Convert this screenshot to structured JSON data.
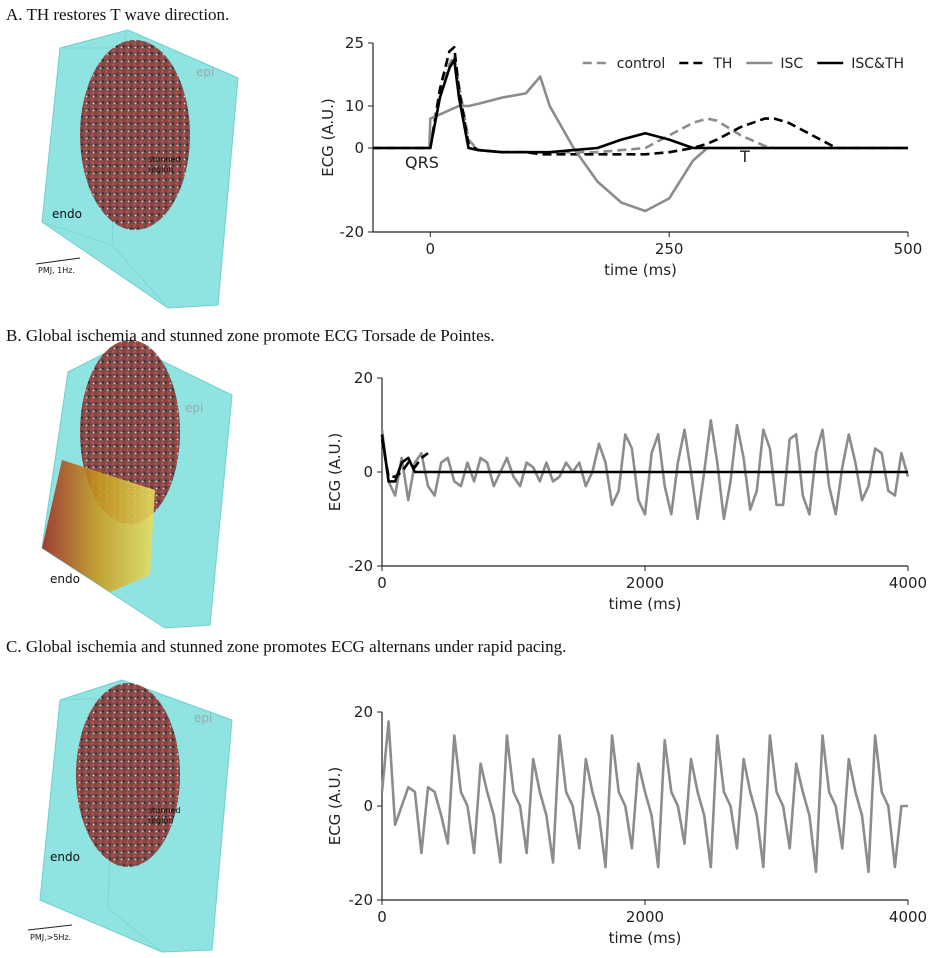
{
  "chart_data": [
    {
      "type": "line",
      "title": "A. TH restores T wave direction.",
      "illustration_labels": [
        "epi",
        "stunned",
        "region",
        "endo",
        "PMJ, 1Hz."
      ],
      "xlabel": "time (ms)",
      "ylabel": "ECG (A.U.)",
      "annotations": [
        "QRS",
        "T"
      ],
      "xlim": [
        -60,
        500
      ],
      "ylim": [
        -20,
        25
      ],
      "xticks": [
        0,
        250,
        500
      ],
      "yticks": [
        -20,
        0,
        10,
        25
      ],
      "legend": "upper right",
      "x": [
        -60,
        -1,
        0,
        10,
        20,
        25,
        30,
        40,
        50,
        75,
        100,
        115,
        125,
        150,
        175,
        200,
        225,
        250,
        275,
        290,
        300,
        325,
        350,
        360,
        375,
        400,
        425,
        450,
        500
      ],
      "series": [
        {
          "name": "control",
          "color": "#8c8c8c",
          "dash": true,
          "values": [
            0,
            0,
            0,
            12,
            20,
            22,
            15,
            2,
            -0.5,
            -1,
            -1,
            -1,
            -1,
            -1,
            -1,
            -0.5,
            0,
            3,
            6,
            7,
            6.5,
            3,
            0.5,
            0,
            0,
            0,
            0,
            0,
            0
          ]
        },
        {
          "name": "TH",
          "color": "#000000",
          "dash": true,
          "values": [
            0,
            0,
            0,
            14,
            23,
            24,
            14,
            1,
            -0.5,
            -1,
            -1,
            -1.5,
            -1.5,
            -1.5,
            -1.5,
            -1.5,
            -1.5,
            -1,
            0,
            1,
            2,
            5,
            7,
            7,
            6,
            3,
            0,
            0,
            0
          ]
        },
        {
          "name": "ISC",
          "color": "#8c8c8c",
          "dash": false,
          "values": [
            0,
            0,
            7,
            8,
            9,
            9.5,
            10,
            10,
            10.5,
            12,
            13,
            17,
            10,
            0,
            -8,
            -13,
            -15,
            -12,
            -3,
            0,
            0,
            0,
            0,
            0,
            0,
            0,
            0,
            0,
            0
          ]
        },
        {
          "name": "ISC&TH",
          "color": "#000000",
          "dash": false,
          "values": [
            0,
            0,
            0,
            12,
            19,
            21,
            12,
            0,
            -0.5,
            -1,
            -1,
            -1,
            -1,
            -0.5,
            0,
            2,
            3.5,
            2,
            0,
            0,
            0,
            0,
            0,
            0,
            0,
            0,
            0,
            0,
            0
          ]
        }
      ]
    },
    {
      "type": "line",
      "title": "B. Global ischemia and stunned zone promote ECG Torsade de Pointes.",
      "illustration_labels": [
        "epi",
        "endo"
      ],
      "xlabel": "time (ms)",
      "ylabel": "ECG (A.U.)",
      "xlim": [
        0,
        4000
      ],
      "ylim": [
        -20,
        20
      ],
      "xticks": [
        0,
        2000,
        4000
      ],
      "yticks": [
        -20,
        0,
        20
      ],
      "x": [
        0,
        50,
        100,
        150,
        200,
        250,
        300,
        350,
        400,
        450,
        500,
        550,
        600,
        650,
        700,
        750,
        800,
        850,
        900,
        950,
        1000,
        1050,
        1100,
        1150,
        1200,
        1250,
        1300,
        1350,
        1400,
        1450,
        1500,
        1550,
        1600,
        1650,
        1700,
        1750,
        1800,
        1850,
        1900,
        1950,
        2000,
        2050,
        2100,
        2150,
        2200,
        2250,
        2300,
        2350,
        2400,
        2450,
        2500,
        2550,
        2600,
        2650,
        2700,
        2750,
        2800,
        2850,
        2900,
        2950,
        3000,
        3050,
        3100,
        3150,
        3200,
        3250,
        3300,
        3350,
        3400,
        3450,
        3500,
        3550,
        3600,
        3650,
        3700,
        3750,
        3800,
        3850,
        3900,
        3950,
        4000
      ],
      "series": [
        {
          "color": "#8c8c8c",
          "dash": false,
          "values": [
            9,
            -2,
            -5,
            3,
            -6,
            2,
            4,
            -3,
            -5,
            2,
            3,
            -2,
            -3,
            2,
            -2,
            3,
            2,
            -3,
            0,
            3,
            -1,
            -3,
            2,
            1,
            -2,
            2,
            -2,
            -1,
            2,
            0,
            2,
            -3,
            0,
            6,
            2,
            -7,
            -4,
            8,
            5,
            -6,
            -9,
            4,
            8,
            -3,
            -9,
            2,
            9,
            0,
            -10,
            0,
            11,
            2,
            -10,
            -2,
            10,
            3,
            -8,
            -4,
            9,
            5,
            -7,
            -7,
            7,
            8,
            -5,
            -9,
            4,
            9,
            -3,
            -9,
            1,
            8,
            2,
            -6,
            -3,
            5,
            4,
            -4,
            -5,
            4,
            -1
          ]
        },
        {
          "color": "#000000",
          "dash": false,
          "values": [
            8,
            -2,
            -2,
            2,
            3,
            0,
            0,
            0,
            0,
            0,
            0,
            0,
            0,
            0,
            0,
            0,
            0,
            0,
            0,
            0,
            0,
            0,
            0,
            0,
            0,
            0,
            0,
            0,
            0,
            0,
            0,
            0,
            0,
            0,
            0,
            0,
            0,
            0,
            0,
            0,
            0,
            0,
            0,
            0,
            0,
            0,
            0,
            0,
            0,
            0,
            0,
            0,
            0,
            0,
            0,
            0,
            0,
            0,
            0,
            0,
            0,
            0,
            0,
            0,
            0,
            0,
            0,
            0,
            0,
            0,
            0,
            0,
            0,
            0,
            0,
            0,
            0,
            0,
            0,
            0,
            0
          ]
        },
        {
          "color": "#000000",
          "dash": true,
          "values": [
            7,
            -1,
            -1,
            0,
            2,
            1,
            3,
            4,
            null,
            null,
            null,
            null,
            null,
            null,
            null,
            null,
            null,
            null,
            null,
            null,
            null,
            null,
            null,
            null,
            null,
            null,
            null,
            null,
            null,
            null,
            null,
            null,
            null,
            null,
            null,
            null,
            null,
            null,
            null,
            null,
            null,
            null,
            null,
            null,
            null,
            null,
            null,
            null,
            null,
            null,
            null,
            null,
            null,
            null,
            null,
            null,
            null,
            null,
            null,
            null,
            null,
            null,
            null,
            null,
            null,
            null,
            null,
            null,
            null,
            null,
            null,
            null,
            null,
            null,
            null,
            null,
            null,
            null,
            null,
            null,
            null
          ]
        }
      ]
    },
    {
      "type": "line",
      "title": "C. Global ischemia and stunned zone promotes ECG alternans under rapid pacing.",
      "illustration_labels": [
        "epi",
        "stunned",
        "region",
        "endo",
        "PMJ,>5Hz."
      ],
      "xlabel": "time (ms)",
      "ylabel": "ECG (A.U.)",
      "xlim": [
        0,
        4000
      ],
      "ylim": [
        -20,
        20
      ],
      "xticks": [
        0,
        2000,
        4000
      ],
      "yticks": [
        -20,
        0,
        20
      ],
      "x": [
        0,
        50,
        100,
        150,
        200,
        250,
        300,
        350,
        400,
        450,
        500,
        550,
        600,
        650,
        700,
        750,
        800,
        850,
        900,
        950,
        1000,
        1050,
        1100,
        1150,
        1200,
        1250,
        1300,
        1350,
        1400,
        1450,
        1500,
        1550,
        1600,
        1650,
        1700,
        1750,
        1800,
        1850,
        1900,
        1950,
        2000,
        2050,
        2100,
        2150,
        2200,
        2250,
        2300,
        2350,
        2400,
        2450,
        2500,
        2550,
        2600,
        2650,
        2700,
        2750,
        2800,
        2850,
        2900,
        2950,
        3000,
        3050,
        3100,
        3150,
        3200,
        3250,
        3300,
        3350,
        3400,
        3450,
        3500,
        3550,
        3600,
        3650,
        3700,
        3750,
        3800,
        3850,
        3900,
        3950,
        4000
      ],
      "series": [
        {
          "color": "#8c8c8c",
          "dash": false,
          "values": [
            3,
            18,
            -4,
            0,
            4,
            3,
            -10,
            4,
            3,
            -2,
            -8,
            15,
            3,
            0,
            -10,
            9,
            3,
            -2,
            -12,
            15,
            3,
            0,
            -10,
            10,
            3,
            -2,
            -12,
            15,
            3,
            0,
            -9,
            10,
            3,
            -2,
            -13,
            15,
            3,
            0,
            -9,
            9,
            3,
            -2,
            -13,
            14,
            3,
            0,
            -8,
            10,
            3,
            -2,
            -13,
            15,
            3,
            0,
            -9,
            10,
            3,
            -2,
            -13,
            15,
            3,
            0,
            -9,
            9,
            3,
            -2,
            -14,
            15,
            3,
            0,
            -9,
            10,
            3,
            -2,
            -14,
            15,
            3,
            0,
            -13,
            0,
            0
          ]
        }
      ]
    }
  ]
}
